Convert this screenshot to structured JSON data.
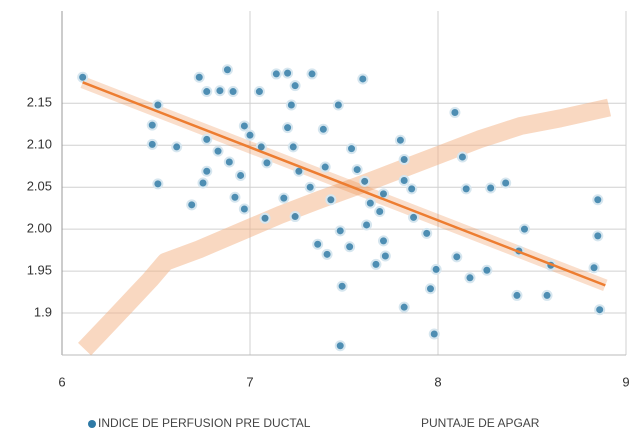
{
  "chart_data": {
    "type": "scatter",
    "xlim": [
      6,
      9
    ],
    "xticks": [
      6,
      7,
      8,
      9
    ],
    "ylim": [
      1.85,
      2.26
    ],
    "yticks": [
      1.9,
      1.95,
      {
        "value": 2.0,
        "label": "2.00"
      },
      2.05,
      {
        "value": 2.1,
        "label": "2.10"
      },
      2.15
    ],
    "grid": true,
    "series": [
      {
        "name": "INDICE DE PERFUSION PRE DUCTAL",
        "color": "#2f7aa6",
        "x": [
          6.11,
          6.51,
          6.48,
          6.48,
          6.61,
          6.51,
          6.69,
          6.73,
          6.77,
          6.84,
          6.88,
          6.91,
          6.77,
          6.83,
          6.77,
          6.75,
          6.89,
          6.95,
          6.92,
          6.97,
          7.08,
          7.0,
          7.06,
          7.09,
          7.05,
          7.14,
          7.2,
          7.24,
          7.33,
          7.22,
          7.2,
          7.23,
          7.26,
          7.18,
          7.24,
          7.32,
          7.39,
          7.4,
          7.43,
          7.47,
          7.54,
          7.57,
          7.6,
          7.61,
          7.64,
          7.36,
          7.41,
          7.48,
          7.62,
          7.71,
          7.72,
          7.69,
          7.8,
          7.82,
          7.82,
          7.87,
          7.94,
          7.99,
          7.96,
          8.09,
          8.13,
          8.15,
          8.28,
          8.36,
          8.1,
          8.26,
          8.42,
          8.58,
          8.6,
          8.46,
          8.83,
          8.86,
          8.85,
          8.85,
          7.48,
          7.49,
          7.82,
          7.98,
          7.67,
          8.17,
          6.97,
          7.53,
          7.71,
          7.86,
          8.43
        ],
        "values": [
          2.181,
          2.148,
          2.124,
          2.101,
          2.098,
          2.054,
          2.029,
          2.181,
          2.164,
          2.165,
          2.19,
          2.164,
          2.107,
          2.093,
          2.069,
          2.055,
          2.08,
          2.064,
          2.038,
          2.024,
          2.013,
          2.112,
          2.098,
          2.079,
          2.164,
          2.185,
          2.186,
          2.171,
          2.185,
          2.148,
          2.121,
          2.098,
          2.069,
          2.037,
          2.015,
          2.05,
          2.119,
          2.074,
          2.035,
          2.148,
          2.096,
          2.071,
          2.179,
          2.057,
          2.031,
          1.982,
          1.97,
          1.998,
          2.005,
          1.986,
          1.968,
          2.021,
          2.106,
          2.083,
          2.058,
          2.014,
          1.995,
          1.952,
          1.929,
          2.139,
          2.086,
          2.048,
          2.049,
          2.055,
          1.967,
          1.951,
          1.921,
          1.921,
          1.957,
          2.0,
          1.954,
          1.904,
          1.992,
          2.035,
          1.861,
          1.932,
          1.907,
          1.875,
          1.958,
          1.942,
          2.123,
          1.979,
          2.042,
          2.048,
          1.974
        ]
      },
      {
        "name": "PUNTAJE DE APGAR",
        "color": "#f4b183",
        "x": [
          6.12,
          6.26,
          6.47,
          6.55,
          6.73,
          6.95,
          7.16,
          7.37,
          7.59,
          7.8,
          8.01,
          8.22,
          8.44,
          8.65,
          8.91
        ],
        "values": [
          1.857,
          1.89,
          1.94,
          1.961,
          1.976,
          1.997,
          2.017,
          2.035,
          2.053,
          2.071,
          2.089,
          2.107,
          2.123,
          2.132,
          2.145
        ]
      }
    ],
    "trendline": {
      "color": "#ed7d31",
      "x": [
        6.11,
        8.89
      ],
      "values": [
        2.175,
        1.933
      ]
    }
  }
}
